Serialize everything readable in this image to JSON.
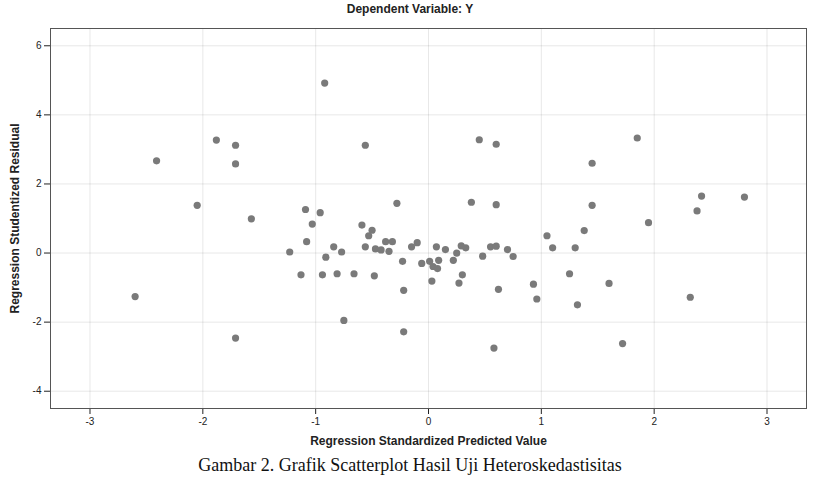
{
  "chart_data": {
    "type": "scatter",
    "title": "Dependent Variable: Y",
    "x_label": "Regression Standardized Predicted Value",
    "y_label": "Regression Studentized Residual",
    "caption": "Gambar 2. Grafik Scatterplot Hasil Uji Heteroskedastisitas",
    "color": "#7a7a7a",
    "marker": "circle",
    "grid": true,
    "xlim": [
      -3.35,
      3.35
    ],
    "ylim": [
      -4.5,
      6.5
    ],
    "xticks": [
      -3,
      -2,
      -1,
      0,
      1,
      2,
      3
    ],
    "yticks": [
      -4,
      -2,
      0,
      2,
      4,
      6
    ],
    "x": [
      -2.6,
      -2.41,
      -2.05,
      -1.88,
      -1.71,
      -1.71,
      -1.71,
      -1.57,
      -1.23,
      -1.13,
      -1.09,
      -1.08,
      -1.03,
      -0.96,
      -0.92,
      -0.94,
      -0.91,
      -0.84,
      -0.81,
      -0.77,
      -0.75,
      -0.66,
      -0.59,
      -0.56,
      -0.56,
      -0.5,
      -0.48,
      -0.47,
      -0.42,
      -0.38,
      -0.32,
      -0.28,
      -0.23,
      -0.22,
      -0.22,
      -0.15,
      -0.06,
      -0.1,
      0.01,
      0.03,
      0.04,
      0.07,
      0.08,
      0.09,
      0.22,
      0.25,
      0.27,
      0.29,
      0.3,
      0.33,
      0.38,
      0.45,
      0.48,
      0.55,
      0.58,
      0.6,
      0.6,
      0.6,
      0.62,
      0.7,
      0.75,
      0.93,
      0.96,
      1.05,
      1.1,
      1.25,
      1.3,
      1.32,
      1.38,
      1.45,
      1.45,
      1.6,
      1.72,
      1.85,
      1.95,
      2.32,
      2.38,
      2.42,
      2.8,
      -0.53,
      -0.35,
      0.15
    ],
    "values": [
      -1.26,
      2.67,
      1.38,
      3.27,
      3.12,
      2.58,
      -2.46,
      0.99,
      0.03,
      -0.63,
      1.26,
      0.33,
      0.84,
      1.17,
      4.92,
      -0.63,
      -0.12,
      0.18,
      -0.6,
      0.03,
      -1.95,
      -0.6,
      0.81,
      3.12,
      0.18,
      0.66,
      -0.66,
      0.12,
      0.09,
      0.33,
      0.33,
      1.44,
      -0.24,
      -1.08,
      -2.28,
      0.18,
      -0.3,
      0.3,
      -0.24,
      -0.81,
      -0.39,
      0.18,
      -0.45,
      -0.21,
      -0.21,
      0.0,
      -0.87,
      0.21,
      -0.63,
      0.15,
      1.47,
      3.28,
      -0.09,
      0.18,
      -2.75,
      3.15,
      1.4,
      0.2,
      -1.05,
      0.1,
      -0.1,
      -0.9,
      -1.33,
      0.5,
      0.15,
      -0.6,
      0.15,
      -1.5,
      0.65,
      2.6,
      1.38,
      -0.88,
      -2.62,
      3.33,
      0.88,
      -1.28,
      1.22,
      1.65,
      1.62,
      0.5,
      0.05,
      0.1
    ]
  }
}
